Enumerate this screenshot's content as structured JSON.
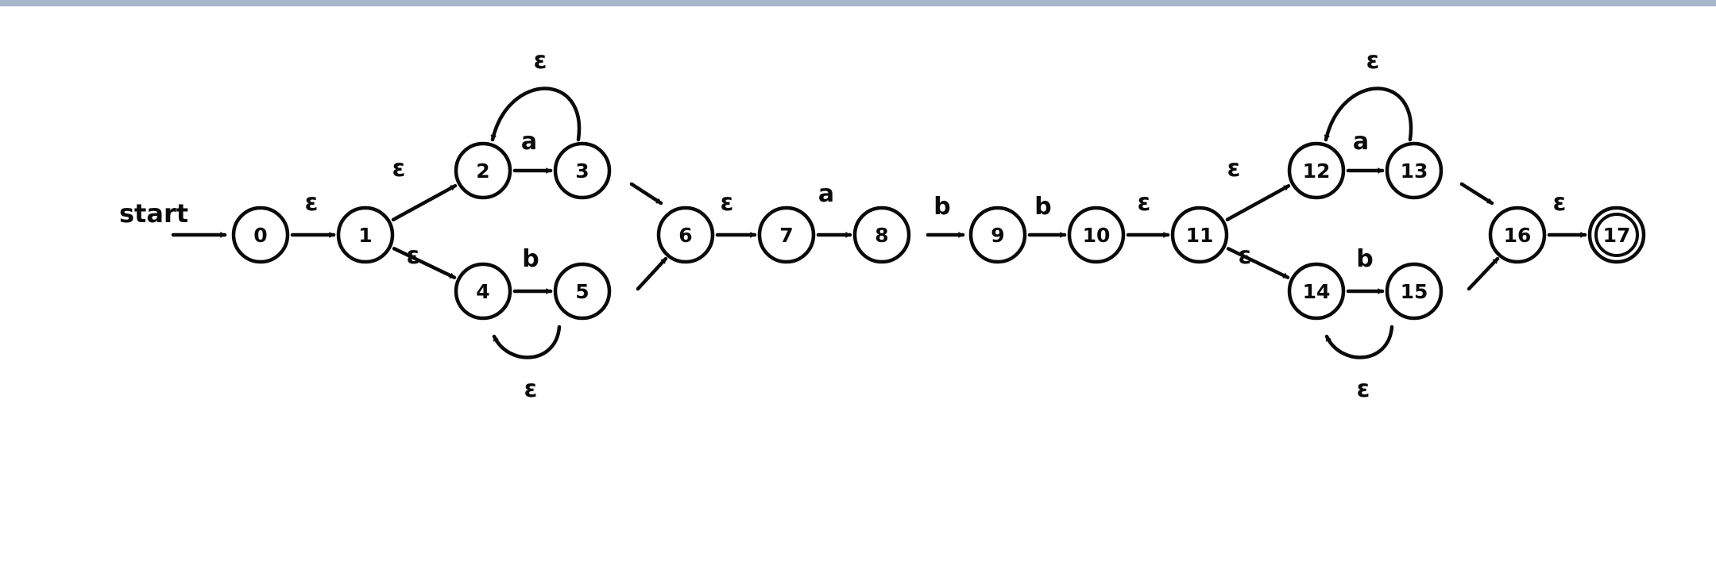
{
  "diagram": {
    "start_label": "start",
    "states": [
      {
        "id": "0",
        "label": "0"
      },
      {
        "id": "1",
        "label": "1"
      },
      {
        "id": "2",
        "label": "2"
      },
      {
        "id": "3",
        "label": "3"
      },
      {
        "id": "4",
        "label": "4"
      },
      {
        "id": "5",
        "label": "5"
      },
      {
        "id": "6",
        "label": "6"
      },
      {
        "id": "7",
        "label": "7"
      },
      {
        "id": "8",
        "label": "8"
      },
      {
        "id": "9",
        "label": "9"
      },
      {
        "id": "10",
        "label": "10"
      },
      {
        "id": "11",
        "label": "11"
      },
      {
        "id": "12",
        "label": "12"
      },
      {
        "id": "13",
        "label": "13"
      },
      {
        "id": "14",
        "label": "14"
      },
      {
        "id": "15",
        "label": "15"
      },
      {
        "id": "16",
        "label": "16"
      },
      {
        "id": "17",
        "label": "17",
        "accepting": true
      }
    ],
    "transitions": [
      {
        "from": "0",
        "to": "1",
        "label": "ε"
      },
      {
        "from": "1",
        "to": "2",
        "label": "ε"
      },
      {
        "from": "1",
        "to": "4",
        "label": "ε"
      },
      {
        "from": "2",
        "to": "3",
        "label": "a"
      },
      {
        "from": "3",
        "to": "2",
        "label": "ε"
      },
      {
        "from": "4",
        "to": "5",
        "label": "b"
      },
      {
        "from": "5",
        "to": "4",
        "label": "ε"
      },
      {
        "from": "3",
        "to": "6",
        "label": ""
      },
      {
        "from": "5",
        "to": "6",
        "label": ""
      },
      {
        "from": "6",
        "to": "7",
        "label": "ε"
      },
      {
        "from": "7",
        "to": "8",
        "label": "a"
      },
      {
        "from": "8",
        "to": "9",
        "label": "b"
      },
      {
        "from": "9",
        "to": "10",
        "label": "b"
      },
      {
        "from": "10",
        "to": "11",
        "label": "ε"
      },
      {
        "from": "11",
        "to": "12",
        "label": "ε"
      },
      {
        "from": "11",
        "to": "14",
        "label": "ε"
      },
      {
        "from": "12",
        "to": "13",
        "label": "a"
      },
      {
        "from": "13",
        "to": "12",
        "label": "ε"
      },
      {
        "from": "14",
        "to": "15",
        "label": "b"
      },
      {
        "from": "15",
        "to": "14",
        "label": "ε"
      },
      {
        "from": "13",
        "to": "16",
        "label": ""
      },
      {
        "from": "15",
        "to": "16",
        "label": ""
      },
      {
        "from": "16",
        "to": "17",
        "label": "ε"
      }
    ]
  },
  "colors": {
    "ink": "#0a0a0a",
    "top_bar": "#a8b8cc",
    "background": "#ffffff"
  }
}
